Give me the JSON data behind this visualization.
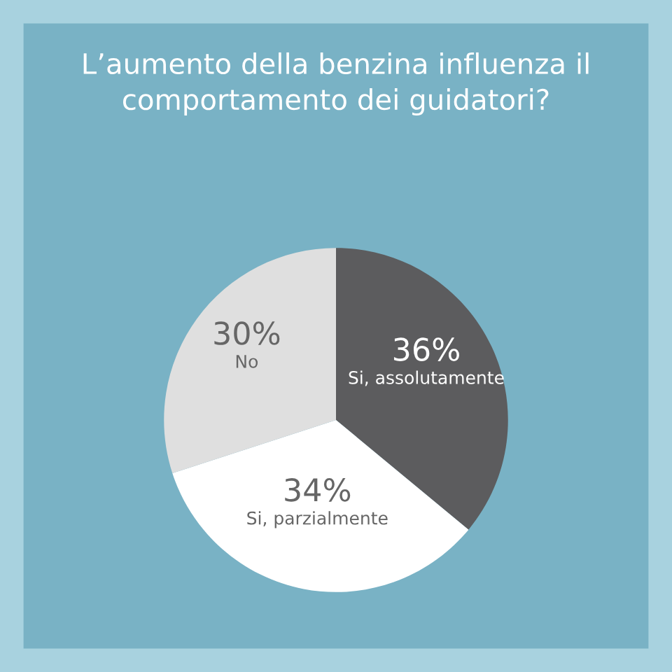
{
  "chart_data": {
    "type": "pie",
    "title": "L’aumento della benzina influenza il\ncomportamento dei guidatori?",
    "categories": [
      "Si, assolutamente",
      "Si, parzialmente",
      "No"
    ],
    "values": [
      36,
      34,
      30
    ],
    "colors": [
      "#5c5c5e",
      "#ffffff",
      "#dfdfdf"
    ],
    "value_labels": [
      "36%",
      "34%",
      "30%"
    ]
  }
}
